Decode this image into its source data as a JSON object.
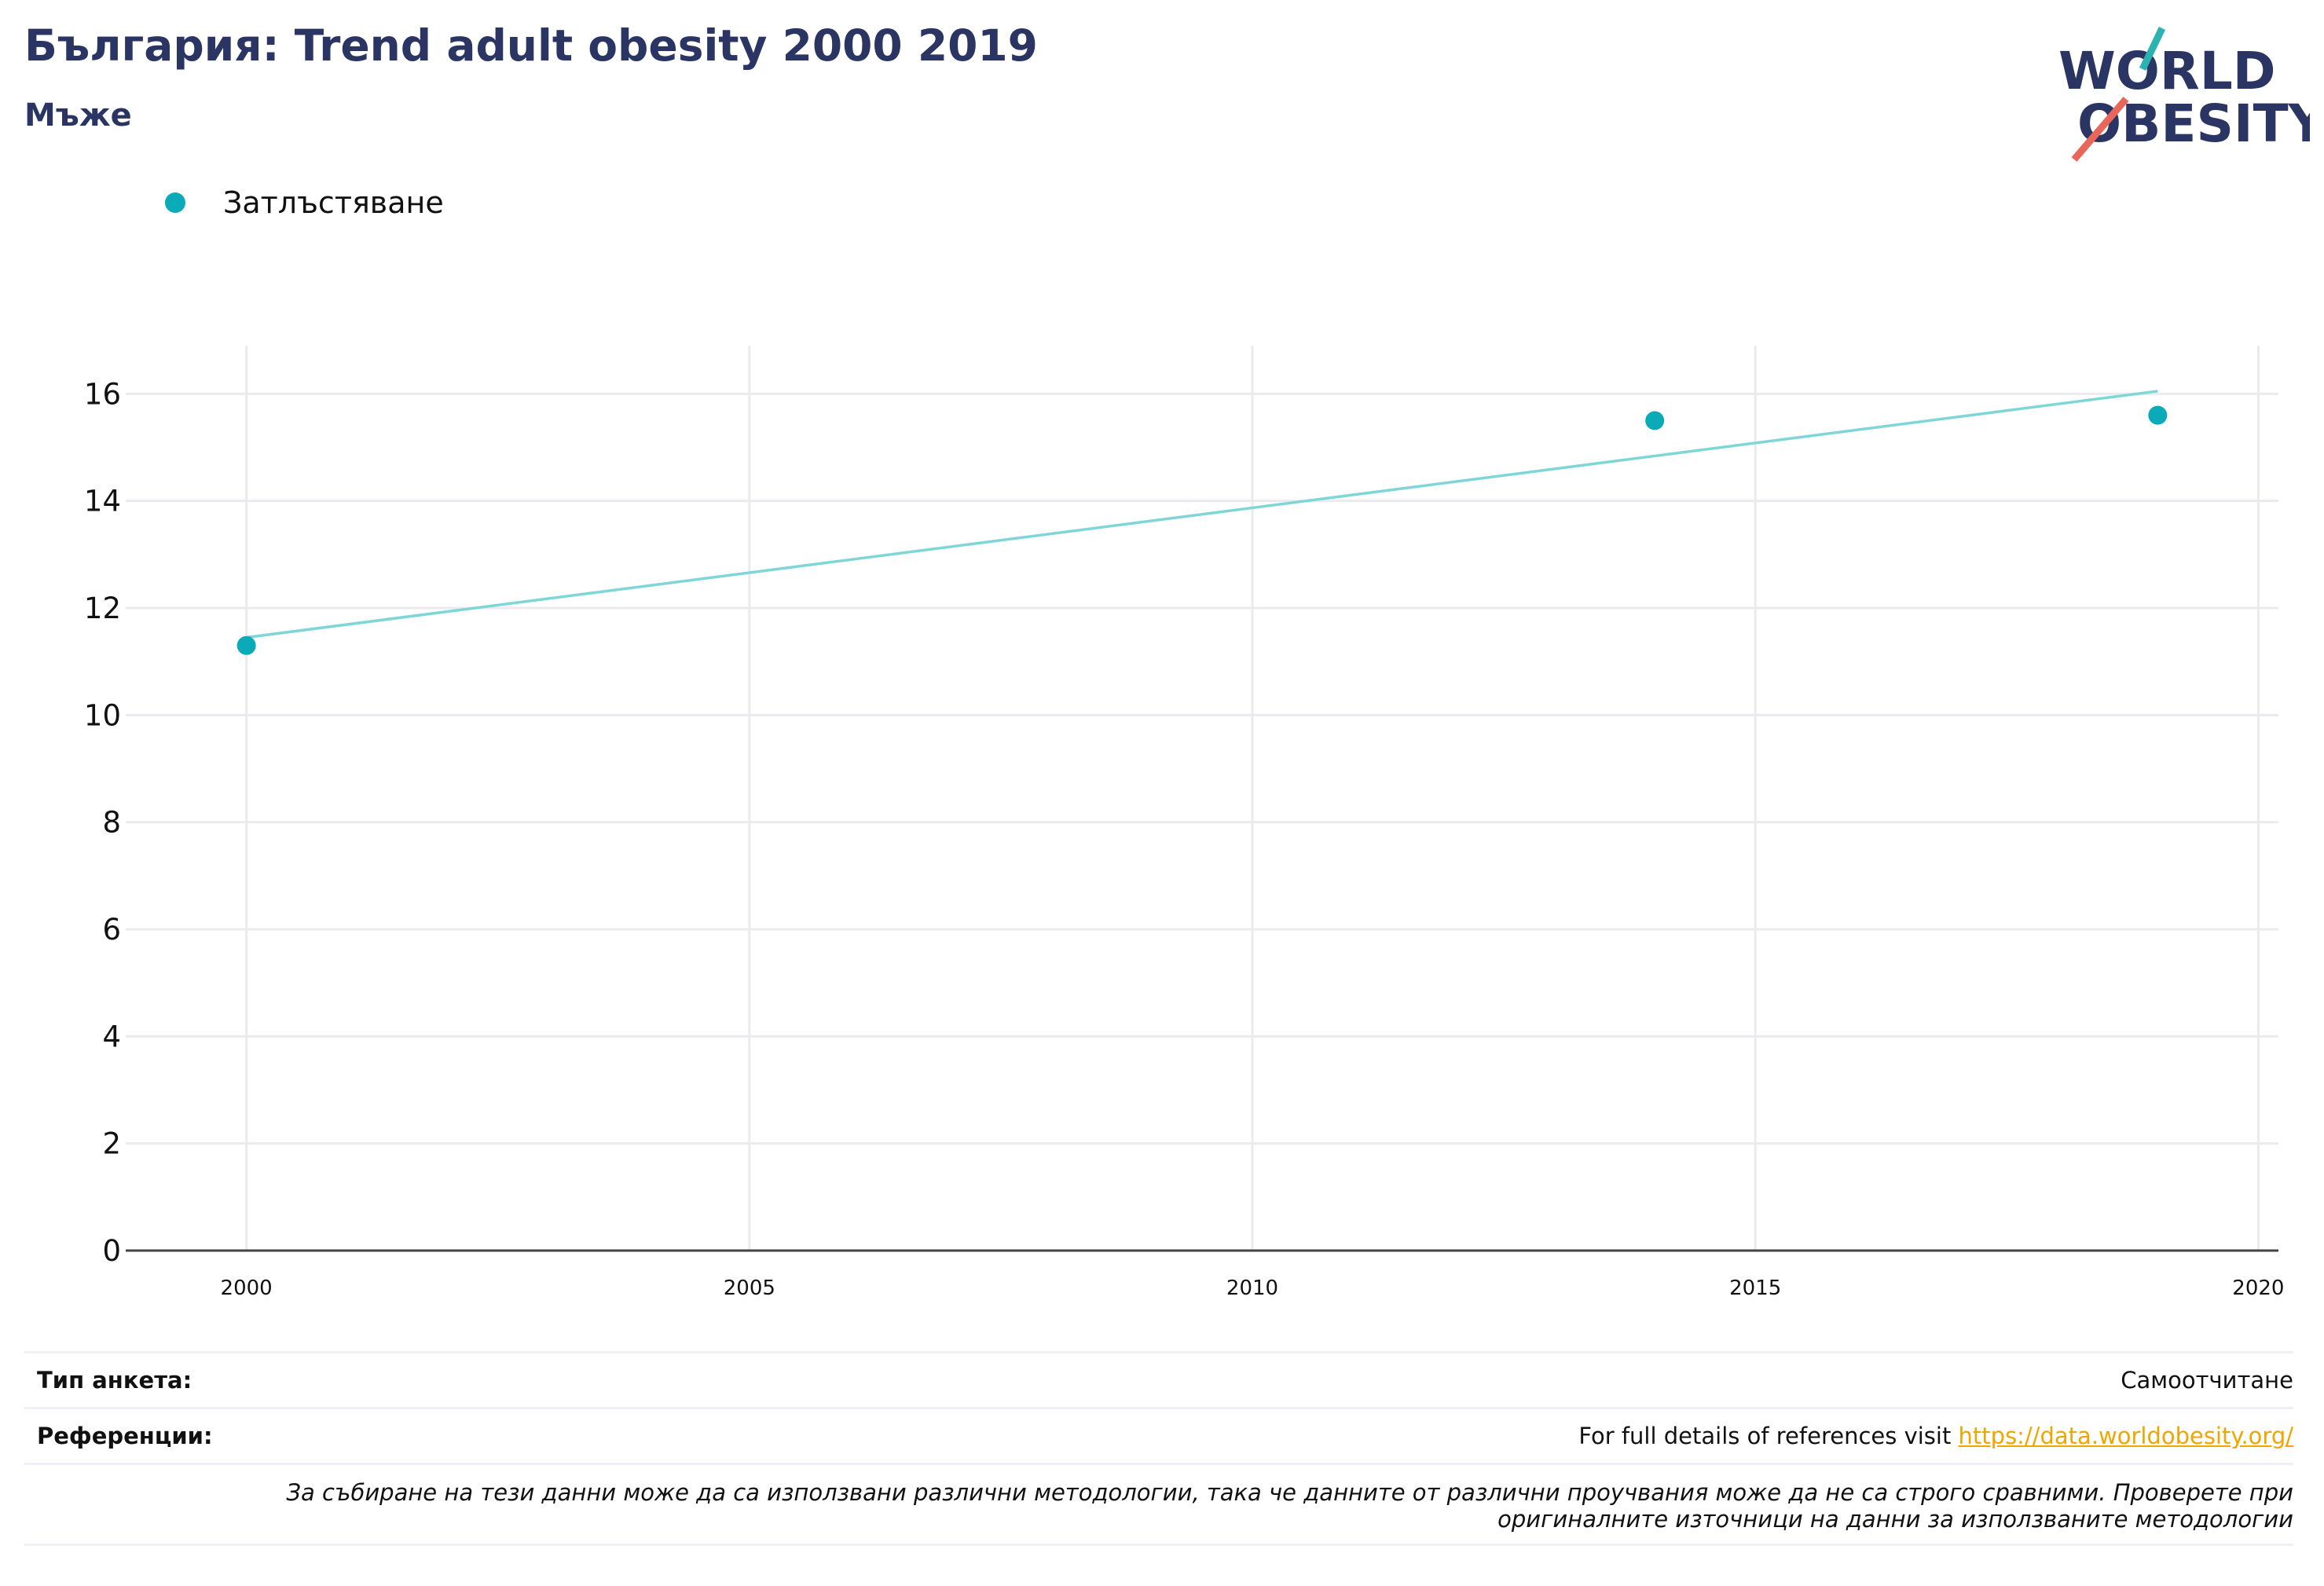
{
  "header": {
    "title": "България: Trend adult obesity 2000 2019",
    "subtitle": "Мъже"
  },
  "logo": {
    "line1": "WORLD",
    "line2": "OBESITY",
    "text_color": "#2a3563",
    "slash_teal": "#2ab3b1",
    "slash_red": "#e8675a"
  },
  "legend": {
    "label": "Затлъстяване",
    "color": "#0aaab8"
  },
  "chart_data": {
    "type": "scatter",
    "title": "",
    "xlabel": "",
    "ylabel": "",
    "x_ticks": [
      2000,
      2005,
      2010,
      2015,
      2020
    ],
    "y_ticks": [
      0,
      2,
      4,
      6,
      8,
      10,
      12,
      14,
      16
    ],
    "xlim": [
      1998.8,
      2020.2
    ],
    "ylim": [
      0,
      16.9
    ],
    "grid": true,
    "legend_position": "top-left",
    "series": [
      {
        "name": "Затлъстяване",
        "color": "#0aaab8",
        "points": [
          {
            "x": 2000,
            "y": 11.3
          },
          {
            "x": 2014,
            "y": 15.5
          },
          {
            "x": 2019,
            "y": 15.6
          }
        ]
      }
    ],
    "trendline": {
      "color": "#7fd6d9",
      "start": {
        "x": 2000,
        "y": 11.45
      },
      "end": {
        "x": 2019,
        "y": 16.05
      }
    }
  },
  "footer": {
    "survey_type_label": "Тип анкета:",
    "survey_type_value": "Самоотчитане",
    "references_label": "Референции:",
    "references_text": "For full details of references visit ",
    "references_link": "https://data.worldobesity.org/",
    "note_line1": "За събиране на тези данни може да са използвани различни методологии, така че данните от различни проучвания може да не са строго сравними. Проверете при",
    "note_line2": "оригиналните източници на данни за използваните методологии"
  }
}
